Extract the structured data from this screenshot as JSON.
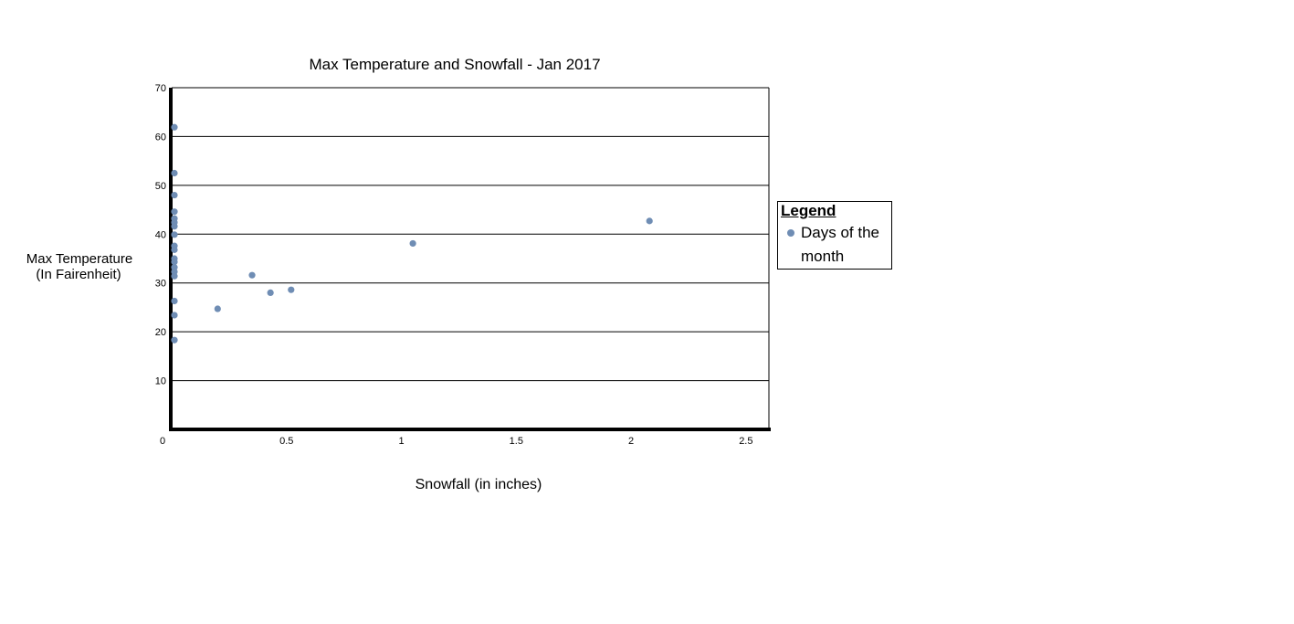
{
  "chart_data": {
    "type": "scatter",
    "title": "Max Temperature and Snowfall - Jan 2017",
    "xlabel": "Snowfall (in inches)",
    "ylabel_line1": "Max Temperature",
    "ylabel_line2": "(In Fairenheit)",
    "xlim": [
      0,
      2.6
    ],
    "ylim": [
      0,
      70
    ],
    "x_ticks": [
      "0",
      "0.5",
      "1",
      "1.5",
      "2",
      "2.5"
    ],
    "x_tick_values": [
      0,
      0.5,
      1,
      1.5,
      2,
      2.5
    ],
    "y_ticks": [
      "70",
      "60",
      "50",
      "40",
      "30",
      "20",
      "10"
    ],
    "y_tick_values": [
      70,
      60,
      50,
      40,
      30,
      20,
      10
    ],
    "grid": true,
    "legend": {
      "title": "Legend",
      "entry": "Days of the month",
      "placement": "right"
    },
    "marker_color": "#6f8db4",
    "series": [
      {
        "name": "Days of the month",
        "points": [
          [
            0,
            61.9
          ],
          [
            0,
            52.5
          ],
          [
            0,
            48.0
          ],
          [
            0,
            44.6
          ],
          [
            0,
            43.2
          ],
          [
            0,
            42.4
          ],
          [
            0,
            41.6
          ],
          [
            0,
            39.9
          ],
          [
            0,
            37.6
          ],
          [
            0,
            36.8
          ],
          [
            0,
            35.0
          ],
          [
            0,
            34.3
          ],
          [
            0,
            33.2
          ],
          [
            0,
            32.3
          ],
          [
            0,
            31.4
          ],
          [
            0,
            26.3
          ],
          [
            0,
            23.4
          ],
          [
            0,
            18.3
          ],
          [
            0.2,
            24.7
          ],
          [
            0.35,
            31.6
          ],
          [
            0.43,
            28.0
          ],
          [
            0.52,
            28.6
          ],
          [
            1.05,
            38.1
          ],
          [
            2.08,
            42.7
          ]
        ]
      }
    ]
  }
}
